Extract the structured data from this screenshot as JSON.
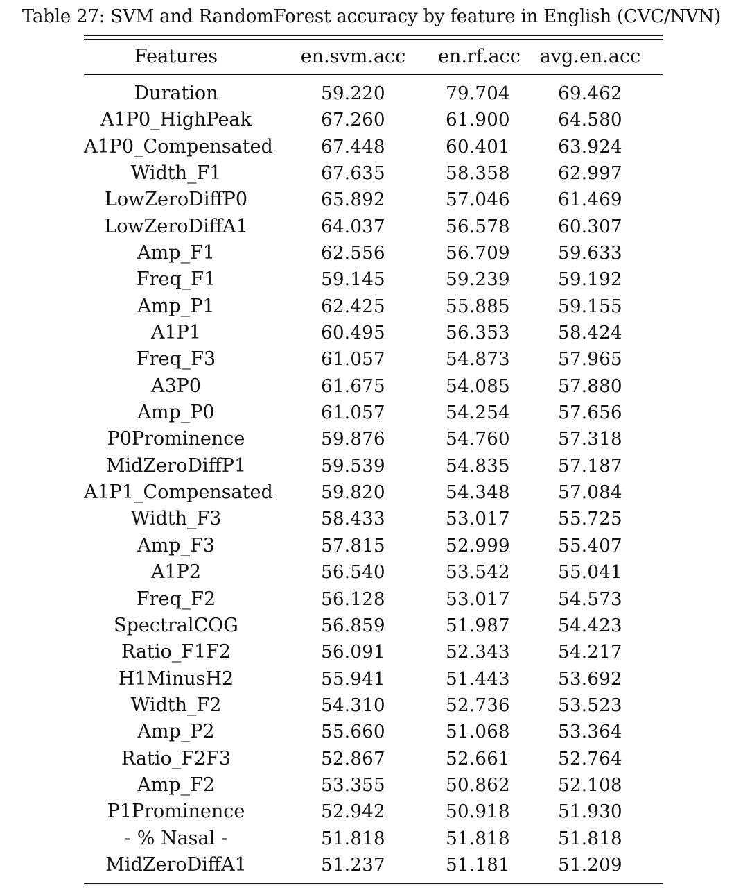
{
  "caption": "Table 27: SVM and RandomForest accuracy by feature in English (CVC/NVN)",
  "table": {
    "headers": [
      "Features",
      "en.svm.acc",
      "en.rf.acc",
      "avg.en.acc"
    ],
    "rows": [
      [
        "Duration",
        "59.220",
        "79.704",
        "69.462"
      ],
      [
        "A1P0_HighPeak",
        "67.260",
        "61.900",
        "64.580"
      ],
      [
        "A1P0_Compensated",
        "67.448",
        "60.401",
        "63.924"
      ],
      [
        "Width_F1",
        "67.635",
        "58.358",
        "62.997"
      ],
      [
        "LowZeroDiffP0",
        "65.892",
        "57.046",
        "61.469"
      ],
      [
        "LowZeroDiffA1",
        "64.037",
        "56.578",
        "60.307"
      ],
      [
        "Amp_F1",
        "62.556",
        "56.709",
        "59.633"
      ],
      [
        "Freq_F1",
        "59.145",
        "59.239",
        "59.192"
      ],
      [
        "Amp_P1",
        "62.425",
        "55.885",
        "59.155"
      ],
      [
        "A1P1",
        "60.495",
        "56.353",
        "58.424"
      ],
      [
        "Freq_F3",
        "61.057",
        "54.873",
        "57.965"
      ],
      [
        "A3P0",
        "61.675",
        "54.085",
        "57.880"
      ],
      [
        "Amp_P0",
        "61.057",
        "54.254",
        "57.656"
      ],
      [
        "P0Prominence",
        "59.876",
        "54.760",
        "57.318"
      ],
      [
        "MidZeroDiffP1",
        "59.539",
        "54.835",
        "57.187"
      ],
      [
        "A1P1_Compensated",
        "59.820",
        "54.348",
        "57.084"
      ],
      [
        "Width_F3",
        "58.433",
        "53.017",
        "55.725"
      ],
      [
        "Amp_F3",
        "57.815",
        "52.999",
        "55.407"
      ],
      [
        "A1P2",
        "56.540",
        "53.542",
        "55.041"
      ],
      [
        "Freq_F2",
        "56.128",
        "53.017",
        "54.573"
      ],
      [
        "SpectralCOG",
        "56.859",
        "51.987",
        "54.423"
      ],
      [
        "Ratio_F1F2",
        "56.091",
        "52.343",
        "54.217"
      ],
      [
        "H1MinusH2",
        "55.941",
        "51.443",
        "53.692"
      ],
      [
        "Width_F2",
        "54.310",
        "52.736",
        "53.523"
      ],
      [
        "Amp_P2",
        "55.660",
        "51.068",
        "53.364"
      ],
      [
        "Ratio_F2F3",
        "52.867",
        "52.661",
        "52.764"
      ],
      [
        "Amp_F2",
        "53.355",
        "50.862",
        "52.108"
      ],
      [
        "P1Prominence",
        "52.942",
        "50.918",
        "51.930"
      ],
      [
        "- % Nasal -",
        "51.818",
        "51.818",
        "51.818"
      ],
      [
        "MidZeroDiffA1",
        "51.237",
        "51.181",
        "51.209"
      ]
    ]
  }
}
